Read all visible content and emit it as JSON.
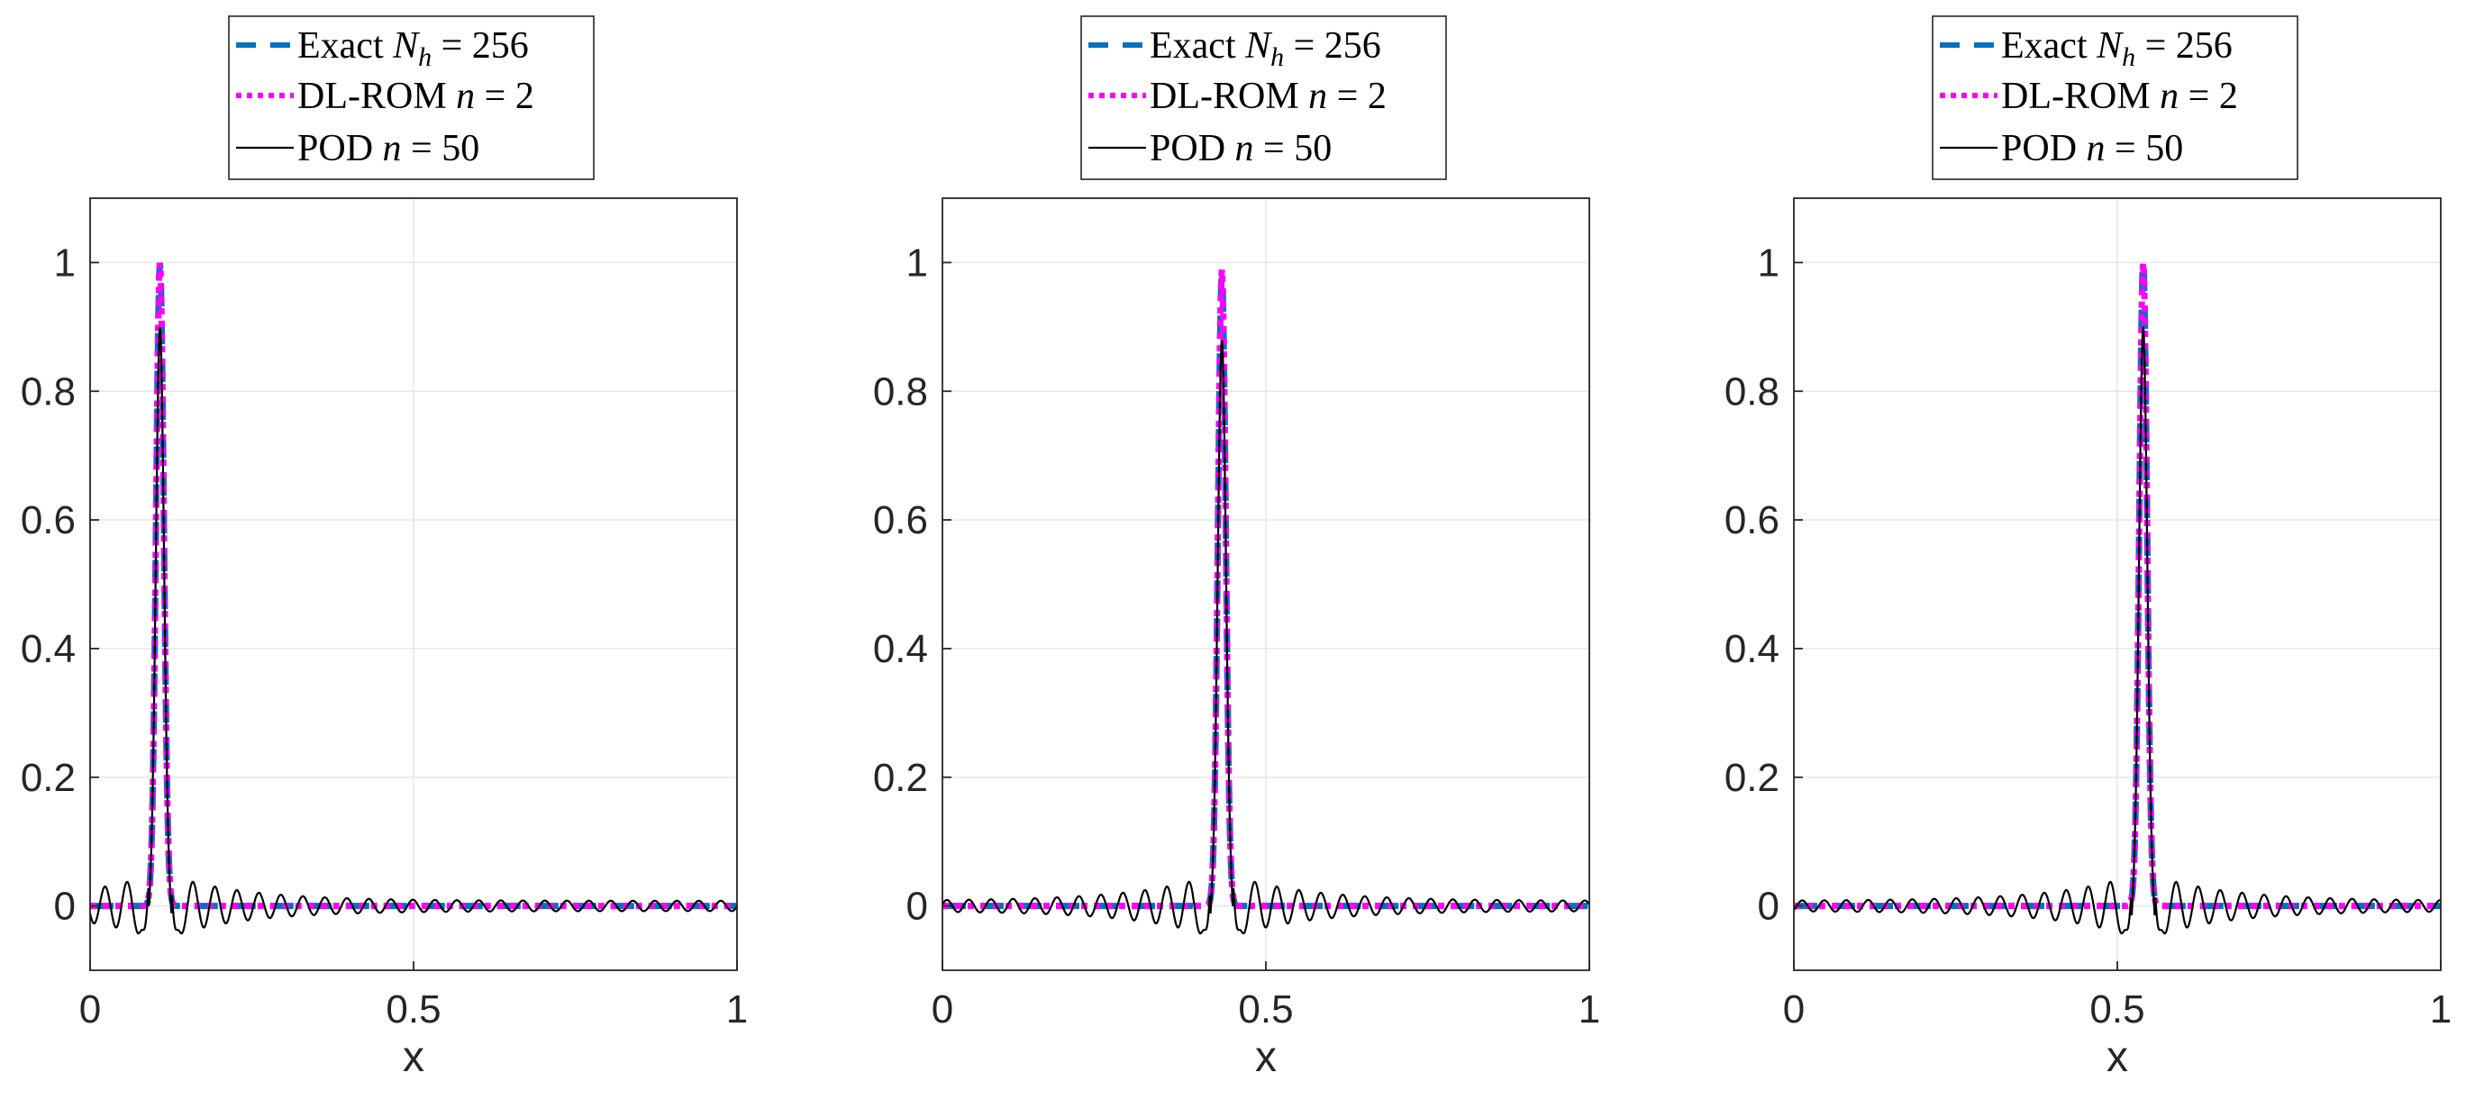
{
  "colors": {
    "exact": "#0072BD",
    "dlrom": "#FF00FF",
    "pod": "#000000",
    "grid": "#E6E6E6",
    "axis": "#262626"
  },
  "legend": {
    "entries": [
      {
        "key": "exact",
        "label": "Exact",
        "var": "N",
        "sub": "h",
        "value": "= 256",
        "style": "dashed"
      },
      {
        "key": "dlrom",
        "label": "DL-ROM",
        "var": "n",
        "sub": "",
        "value": "= 2",
        "style": "dotted"
      },
      {
        "key": "pod",
        "label": "POD",
        "var": "n",
        "sub": "",
        "value": "= 50",
        "style": "solid"
      }
    ]
  },
  "chart_data": [
    {
      "type": "line",
      "xlabel": "x",
      "ylabel": "",
      "xlim": [
        0,
        1
      ],
      "ylim": [
        -0.1,
        1.1
      ],
      "xticks": [
        "0",
        "0.5",
        "1"
      ],
      "yticks": [
        "0",
        "0.2",
        "0.4",
        "0.6",
        "0.8",
        "1"
      ],
      "grid": true,
      "legend_position": "above",
      "series": [
        {
          "name": "Exact N_h = 256",
          "peak_x": 0.108,
          "peak_y": 1.0,
          "width": 0.006
        },
        {
          "name": "DL-ROM n = 2",
          "peak_x": 0.108,
          "peak_y": 1.0,
          "width": 0.006
        },
        {
          "name": "POD n = 50",
          "peak_x": 0.108,
          "peak_y": 0.9,
          "width": 0.006,
          "ripple_amplitude": 0.045
        }
      ]
    },
    {
      "type": "line",
      "xlabel": "x",
      "ylabel": "",
      "xlim": [
        0,
        1
      ],
      "ylim": [
        -0.1,
        1.1
      ],
      "xticks": [
        "0",
        "0.5",
        "1"
      ],
      "yticks": [
        "0",
        "0.2",
        "0.4",
        "0.6",
        "0.8",
        "1"
      ],
      "grid": true,
      "legend_position": "above",
      "series": [
        {
          "name": "Exact N_h = 256",
          "peak_x": 0.432,
          "peak_y": 0.98,
          "width": 0.006
        },
        {
          "name": "DL-ROM n = 2",
          "peak_x": 0.432,
          "peak_y": 0.99,
          "width": 0.006
        },
        {
          "name": "POD n = 50",
          "peak_x": 0.432,
          "peak_y": 0.88,
          "width": 0.006,
          "ripple_amplitude": 0.045
        }
      ]
    },
    {
      "type": "line",
      "xlabel": "x",
      "ylabel": "",
      "xlim": [
        0,
        1
      ],
      "ylim": [
        -0.1,
        1.1
      ],
      "xticks": [
        "0",
        "0.5",
        "1"
      ],
      "yticks": [
        "0",
        "0.2",
        "0.4",
        "0.6",
        "0.8",
        "1"
      ],
      "grid": true,
      "legend_position": "above",
      "series": [
        {
          "name": "Exact N_h = 256",
          "peak_x": 0.54,
          "peak_y": 1.0,
          "width": 0.006
        },
        {
          "name": "DL-ROM n = 2",
          "peak_x": 0.54,
          "peak_y": 1.0,
          "width": 0.006
        },
        {
          "name": "POD n = 50",
          "peak_x": 0.54,
          "peak_y": 0.9,
          "width": 0.006,
          "ripple_amplitude": 0.045
        }
      ]
    }
  ]
}
